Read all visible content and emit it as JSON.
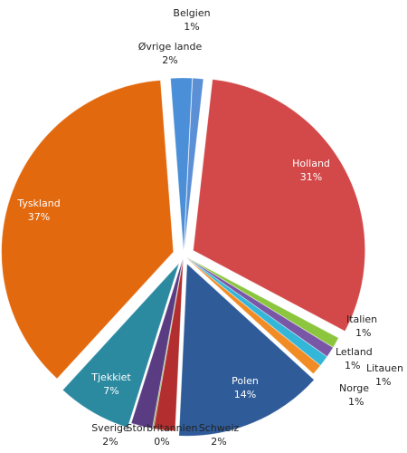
{
  "chart_data": {
    "type": "pie",
    "title": "",
    "slices": [
      {
        "name": "Belgien",
        "value": 1,
        "label": "1%",
        "color": "#5b8fd6"
      },
      {
        "name": "Holland",
        "value": 31,
        "label": "31%",
        "color": "#d34949"
      },
      {
        "name": "Italien",
        "value": 1,
        "label": "1%",
        "color": "#8cc63f"
      },
      {
        "name": "Litauen",
        "value": 1,
        "label": "1%",
        "color": "#7a56a6"
      },
      {
        "name": "Letland",
        "value": 1,
        "label": "1%",
        "color": "#34b6d9"
      },
      {
        "name": "Norge",
        "value": 1,
        "label": "1%",
        "color": "#f18c25"
      },
      {
        "name": "Polen",
        "value": 14,
        "label": "14%",
        "color": "#2f5c99"
      },
      {
        "name": "Schweiz",
        "value": 2,
        "label": "2%",
        "color": "#b32f2f"
      },
      {
        "name": "Storbritannien",
        "value": 0,
        "label": "0%",
        "color": "#6f9a2c"
      },
      {
        "name": "Sverige",
        "value": 2,
        "label": "2%",
        "color": "#5a3c82"
      },
      {
        "name": "Tjekkiet",
        "value": 7,
        "label": "7%",
        "color": "#2c8aa0"
      },
      {
        "name": "Tyskland",
        "value": 37,
        "label": "37%",
        "color": "#e3690e"
      },
      {
        "name": "Øvrige lande",
        "value": 2,
        "label": "2%",
        "color": "#4a8fd8"
      }
    ]
  }
}
